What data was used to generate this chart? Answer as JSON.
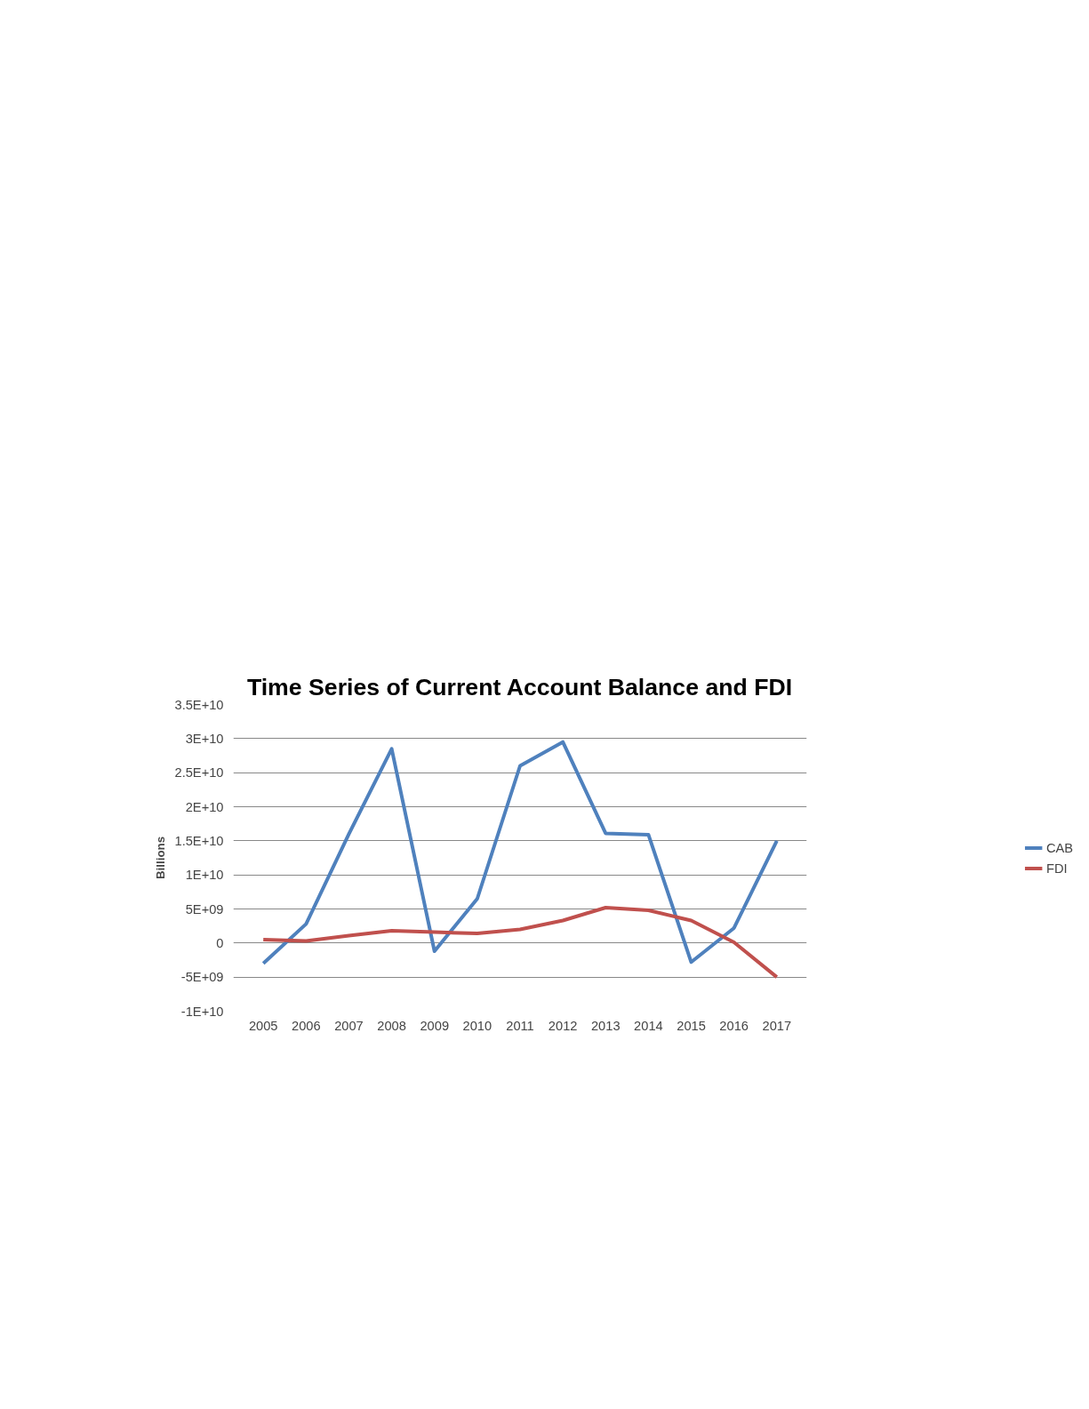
{
  "chart_data": {
    "type": "line",
    "title": "Time Series of Current Account Balance and FDI",
    "ylabel": "Billions",
    "categories": [
      "2005",
      "2006",
      "2007",
      "2008",
      "2009",
      "2010",
      "2011",
      "2012",
      "2013",
      "2014",
      "2015",
      "2016",
      "2017"
    ],
    "series": [
      {
        "name": "CAB",
        "color": "#4f81bd",
        "values": [
          -3000000000.0,
          2800000000.0,
          16000000000.0,
          28500000000.0,
          -1200000000.0,
          6500000000.0,
          26000000000.0,
          29500000000.0,
          16100000000.0,
          15900000000.0,
          -2800000000.0,
          2200000000.0,
          15000000000.0
        ]
      },
      {
        "name": "FDI",
        "color": "#c0504d",
        "values": [
          500000000.0,
          300000000.0,
          1100000000.0,
          1800000000.0,
          1600000000.0,
          1400000000.0,
          2000000000.0,
          3300000000.0,
          5200000000.0,
          4800000000.0,
          3300000000.0,
          100000000.0,
          -5000000000.0
        ]
      }
    ],
    "ylim": [
      -10000000000.0,
      35000000000.0
    ],
    "yticks": [
      {
        "value": -10000000000.0,
        "label": "-1E+10"
      },
      {
        "value": -5000000000.0,
        "label": "-5E+09"
      },
      {
        "value": 0,
        "label": "0"
      },
      {
        "value": 5000000000.0,
        "label": "5E+09"
      },
      {
        "value": 10000000000.0,
        "label": "1E+10"
      },
      {
        "value": 15000000000.0,
        "label": "1.5E+10"
      },
      {
        "value": 20000000000.0,
        "label": "2E+10"
      },
      {
        "value": 25000000000.0,
        "label": "2.5E+10"
      },
      {
        "value": 30000000000.0,
        "label": "3E+10"
      },
      {
        "value": 35000000000.0,
        "label": "3.5E+10"
      }
    ],
    "grid": "y",
    "legend": "right",
    "marker": "none",
    "line_style": "solid"
  }
}
